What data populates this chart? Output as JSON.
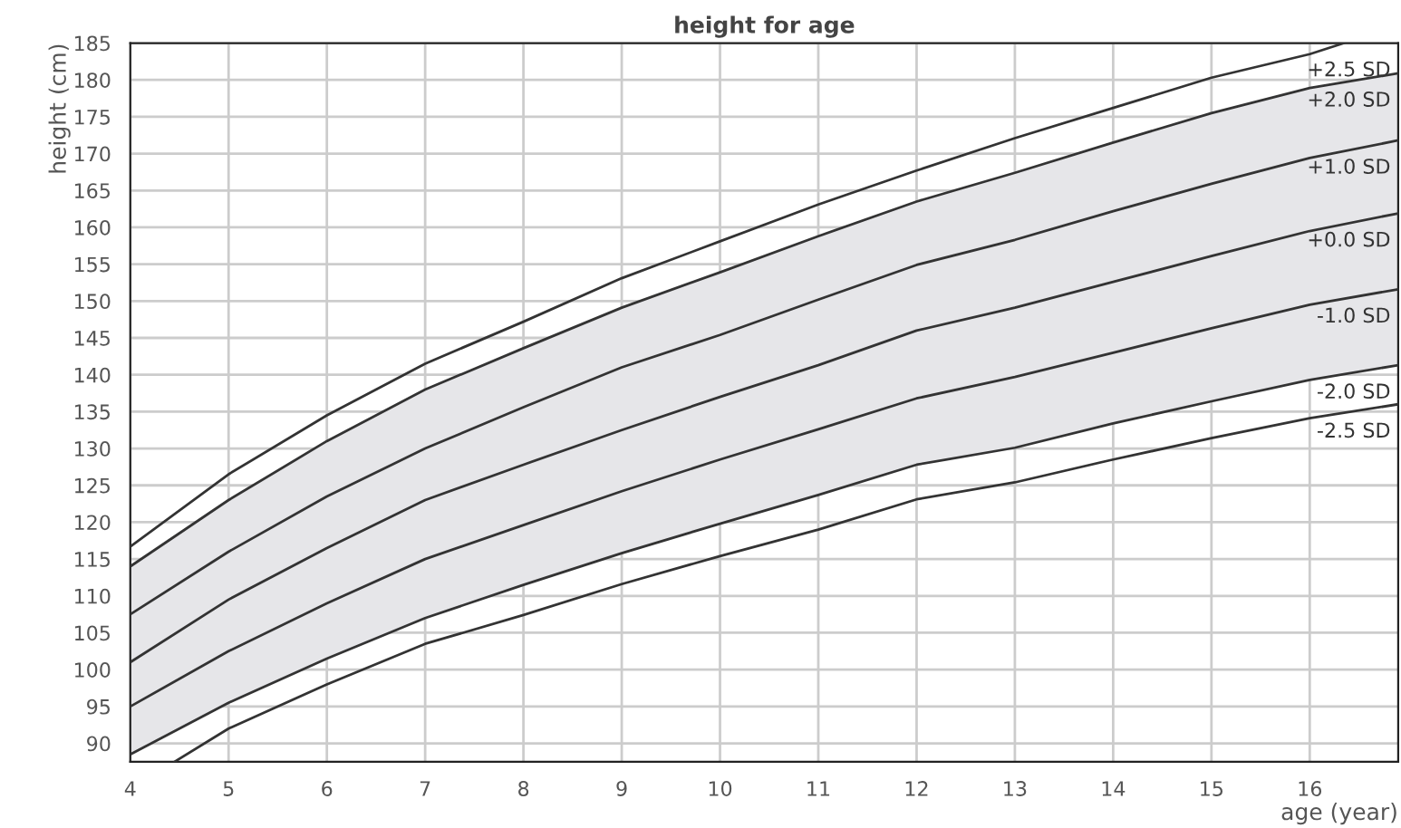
{
  "chart_data": {
    "type": "line",
    "title": "height for age",
    "xlabel": "age (year)",
    "ylabel": "height (cm)",
    "xlim": [
      4,
      16.9
    ],
    "ylim": [
      87.5,
      185
    ],
    "xticks": [
      4,
      5,
      6,
      7,
      8,
      9,
      10,
      11,
      12,
      13,
      14,
      15,
      16
    ],
    "yticks": [
      90,
      95,
      100,
      105,
      110,
      115,
      120,
      125,
      130,
      135,
      140,
      145,
      150,
      155,
      160,
      165,
      170,
      175,
      180,
      185
    ],
    "grid": true,
    "marker": "none",
    "line_style": "solid",
    "series": [
      {
        "name": "+2.5 SD",
        "color": "#333333",
        "x": [
          4,
          5,
          6,
          7,
          8,
          9,
          10,
          11,
          12,
          13,
          14,
          15,
          16,
          16.35
        ],
        "values": [
          116.7,
          126.5,
          134.5,
          141.5,
          147.2,
          153.1,
          158.1,
          163.1,
          167.7,
          172.1,
          176.2,
          180.3,
          183.5,
          185
        ]
      },
      {
        "name": "+2.0 SD",
        "color": "#333333",
        "x": [
          4,
          5,
          6,
          7,
          8,
          9,
          10,
          11,
          12,
          13,
          14,
          15,
          16,
          16.9
        ],
        "values": [
          114,
          123,
          131,
          138,
          143.6,
          149.1,
          153.9,
          158.8,
          163.5,
          167.4,
          171.5,
          175.5,
          178.9,
          180.9
        ]
      },
      {
        "name": "+1.0 SD",
        "color": "#333333",
        "x": [
          4,
          5,
          6,
          7,
          8,
          9,
          10,
          11,
          12,
          13,
          14,
          15,
          16,
          16.9
        ],
        "values": [
          107.5,
          116,
          123.5,
          130,
          135.6,
          141,
          145.4,
          150.2,
          154.9,
          158.3,
          162.2,
          165.9,
          169.4,
          171.8
        ]
      },
      {
        "name": "+0.0 SD",
        "color": "#333333",
        "x": [
          4,
          5,
          6,
          7,
          8,
          9,
          10,
          11,
          12,
          13,
          14,
          15,
          16,
          16.9
        ],
        "values": [
          101,
          109.5,
          116.5,
          123,
          127.8,
          132.5,
          137,
          141.3,
          146,
          149.1,
          152.6,
          156.1,
          159.5,
          161.9
        ],
        "lower": [
          88.5,
          95.5,
          101.5,
          107,
          111.5,
          115.8,
          119.8,
          123.7,
          127.8,
          130.1,
          133.4,
          136.4,
          139.3,
          141.3
        ],
        "upper": [
          114,
          123,
          131,
          138,
          143.6,
          149.1,
          153.9,
          158.8,
          163.5,
          167.4,
          171.5,
          175.5,
          178.9,
          180.9
        ]
      },
      {
        "name": "-1.0 SD",
        "color": "#333333",
        "x": [
          4,
          5,
          6,
          7,
          8,
          9,
          10,
          11,
          12,
          13,
          14,
          15,
          16,
          16.9
        ],
        "values": [
          95,
          102.5,
          109,
          115,
          119.6,
          124.2,
          128.5,
          132.6,
          136.8,
          139.7,
          143,
          146.3,
          149.5,
          151.6
        ]
      },
      {
        "name": "-2.0 SD",
        "color": "#333333",
        "x": [
          4,
          5,
          6,
          7,
          8,
          9,
          10,
          11,
          12,
          13,
          14,
          15,
          16,
          16.9
        ],
        "values": [
          88.5,
          95.5,
          101.5,
          107,
          111.5,
          115.8,
          119.8,
          123.7,
          127.8,
          130.1,
          133.4,
          136.4,
          139.3,
          141.3
        ]
      },
      {
        "name": "-2.5 SD",
        "color": "#333333",
        "x": [
          4.45,
          5,
          6,
          7,
          8,
          9,
          10,
          11,
          12,
          13,
          14,
          15,
          16,
          16.9
        ],
        "values": [
          87.5,
          92,
          98,
          103.5,
          107.4,
          111.6,
          115.4,
          119,
          123.1,
          125.4,
          128.5,
          131.4,
          134.1,
          136
        ]
      }
    ]
  }
}
